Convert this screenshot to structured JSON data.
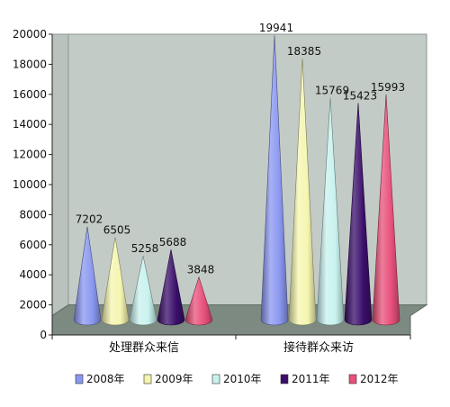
{
  "chart_data": {
    "type": "bar",
    "categories": [
      "处理群众来信",
      "接待群众来访"
    ],
    "series": [
      {
        "name": "2008年",
        "values": [
          7202,
          19941
        ],
        "color": "#8a97f0"
      },
      {
        "name": "2009年",
        "values": [
          6505,
          18385
        ],
        "color": "#f5f5b0"
      },
      {
        "name": "2010年",
        "values": [
          5258,
          15769
        ],
        "color": "#c8f2ee"
      },
      {
        "name": "2011年",
        "values": [
          5688,
          15423
        ],
        "color": "#3a0e6a"
      },
      {
        "name": "2012年",
        "values": [
          3848,
          15993
        ],
        "color": "#e8507a"
      }
    ],
    "yticks": [
      "0",
      "2000",
      "4000",
      "6000",
      "8000",
      "10000",
      "12000",
      "14000",
      "16000",
      "18000",
      "20000"
    ],
    "ylim": [
      0,
      20000
    ],
    "grid": false,
    "legend_position": "bottom",
    "colors": {
      "wall": "#c3cbc6",
      "floor": "#7d8a82"
    }
  }
}
